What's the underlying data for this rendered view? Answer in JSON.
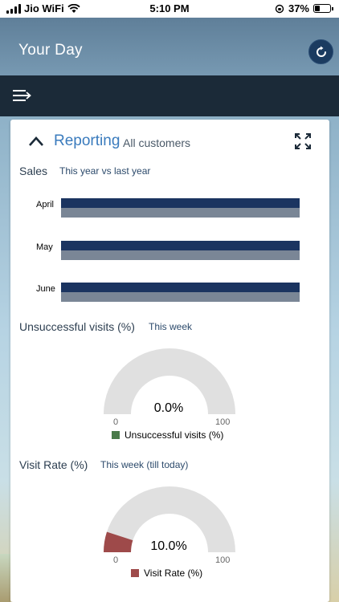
{
  "status_bar": {
    "carrier": "Jio WiFi",
    "time": "5:10 PM",
    "battery": "37%",
    "battery_level": 0.37
  },
  "header": {
    "title": "Your Day"
  },
  "card": {
    "title": "Reporting",
    "subtitle": "All customers"
  },
  "sales": {
    "title": "Sales",
    "subtitle": "This year vs last year"
  },
  "unsuccessful": {
    "title": "Unsuccessful visits (%)",
    "subtitle": "This week",
    "min_label": "0",
    "max_label": "100",
    "legend": "Unsuccessful visits (%)"
  },
  "visit_rate": {
    "title": "Visit Rate (%)",
    "subtitle": "This week (till today)",
    "min_label": "0",
    "max_label": "100",
    "legend": "Visit Rate (%)"
  },
  "colors": {
    "accent": "#3a7bbd",
    "nav": "#1b2a38",
    "bar_this_year": "#1b3460",
    "bar_last_year": "#7a8696",
    "unsuccessful_fill": "#4a7a4a",
    "visit_rate_fill": "#9e4a4a",
    "gauge_track": "#e0e0e0"
  },
  "chart_data": [
    {
      "type": "bar",
      "categories": [
        "April",
        "May",
        "June"
      ],
      "series": [
        {
          "values": [
            100,
            100,
            100
          ]
        },
        {
          "values": [
            100,
            100,
            100
          ]
        }
      ]
    },
    {
      "type": "gauge",
      "value": 0.0,
      "value_label": "0.0%",
      "min": 0,
      "max": 100
    },
    {
      "type": "gauge",
      "value": 10.0,
      "value_label": "10.0%",
      "min": 0,
      "max": 100
    }
  ]
}
